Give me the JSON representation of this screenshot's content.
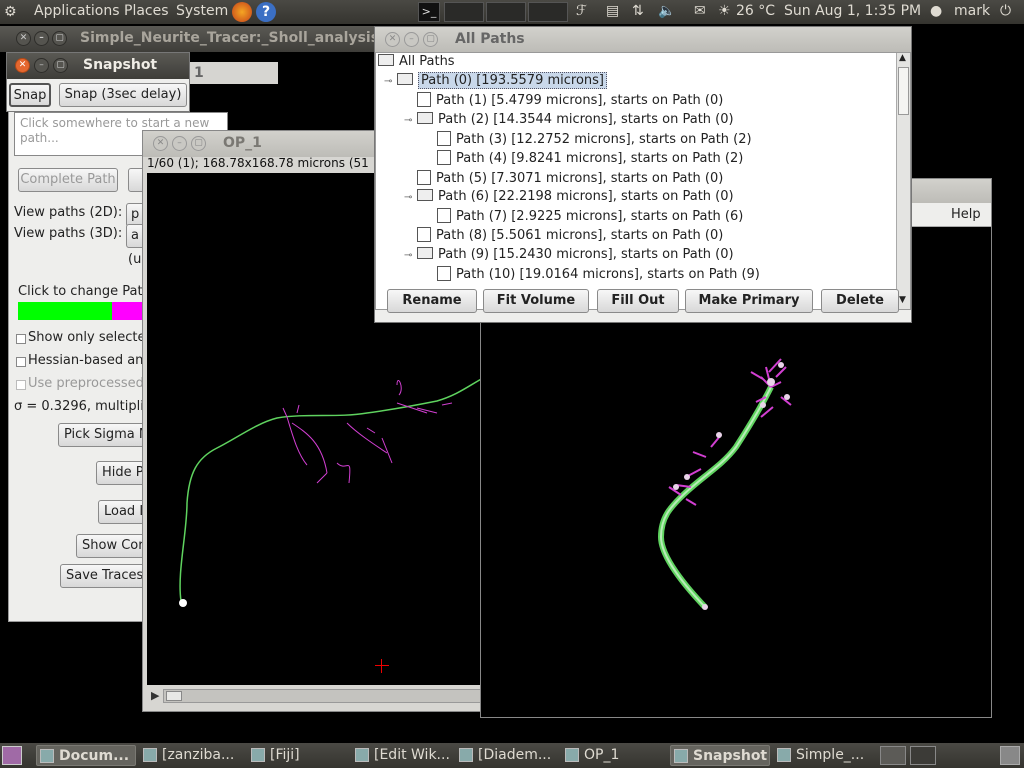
{
  "top_panel": {
    "menus": [
      "Applications",
      "Places",
      "System"
    ],
    "temperature": "26 °C",
    "datetime": "Sun Aug  1,  1:35 PM",
    "user": "mark"
  },
  "back_window": {
    "title": "Simple_Neurite_Tracer:_Sholl_analysis"
  },
  "tracer_window": {
    "status_placeholder": "Click somewhere to start a new path...",
    "complete_path": "Complete Path",
    "view_2d_label": "View paths (2D):",
    "view_2d_value": "p",
    "view_3d_label": "View paths (3D):",
    "view_3d_value": "a",
    "unit_fragment": "(u",
    "click_to_change": "Click to change Pat",
    "show_only_selected": "Show only selecte",
    "hessian": "Hessian-based an",
    "use_preprocessed": "Use preprocessed",
    "sigma_text": "σ = 0.3296, multiplie",
    "pick_sigma": "Pick Sigma M",
    "hide": "Hide P",
    "load": "Load L",
    "show_cor": "Show Cor",
    "save_traces": "Save Traces"
  },
  "snapshot_window": {
    "title": "Snapshot",
    "snap": "Snap",
    "snap_delay": "Snap (3sec delay)",
    "behind_title_fragment": "1"
  },
  "op1_window": {
    "title": "OP_1",
    "info": "1/60 (1); 168.78x168.78 microns (51"
  },
  "viewer3d_window": {
    "help": "Help"
  },
  "all_paths_window": {
    "title": "All Paths",
    "root": "All Paths",
    "items": [
      {
        "label": "Path (0) [193.5579 microns]",
        "level": 1,
        "type": "folder",
        "selected": true
      },
      {
        "label": "Path (1) [5.4799 microns], starts on Path (0)",
        "level": 2,
        "type": "file"
      },
      {
        "label": "Path (2) [14.3544 microns], starts on Path (0)",
        "level": 2,
        "type": "folder"
      },
      {
        "label": "Path (3) [12.2752 microns], starts on Path (2)",
        "level": 3,
        "type": "file"
      },
      {
        "label": "Path (4) [9.8241 microns], starts on Path (2)",
        "level": 3,
        "type": "file"
      },
      {
        "label": "Path (5) [7.3071 microns], starts on Path (0)",
        "level": 2,
        "type": "file"
      },
      {
        "label": "Path (6) [22.2198 microns], starts on Path (0)",
        "level": 2,
        "type": "folder"
      },
      {
        "label": "Path (7) [2.9225 microns], starts on Path (6)",
        "level": 3,
        "type": "file"
      },
      {
        "label": "Path (8) [5.5061 microns], starts on Path (0)",
        "level": 2,
        "type": "file"
      },
      {
        "label": "Path (9) [15.2430 microns], starts on Path (0)",
        "level": 2,
        "type": "folder"
      },
      {
        "label": "Path (10) [19.0164 microns], starts on Path (9)",
        "level": 3,
        "type": "file"
      }
    ],
    "buttons": [
      "Rename",
      "Fit Volume",
      "Fill Out",
      "Make Primary",
      "Delete"
    ]
  },
  "taskbar": {
    "tasks": [
      {
        "label": "Docum...",
        "active": true
      },
      {
        "label": "[zanziba...",
        "active": false
      },
      {
        "label": "[Fiji]",
        "active": false
      },
      {
        "label": "[Edit Wik...",
        "active": false
      },
      {
        "label": "[Diadem...",
        "active": false
      },
      {
        "label": "OP_1",
        "active": false
      },
      {
        "label": "Snapshot",
        "active": true
      },
      {
        "label": "Simple_...",
        "active": false
      }
    ]
  },
  "colors": {
    "path_green": "#5fd35f",
    "branch_magenta": "#d23fd2",
    "selection_blue": "#c9d8ea"
  }
}
